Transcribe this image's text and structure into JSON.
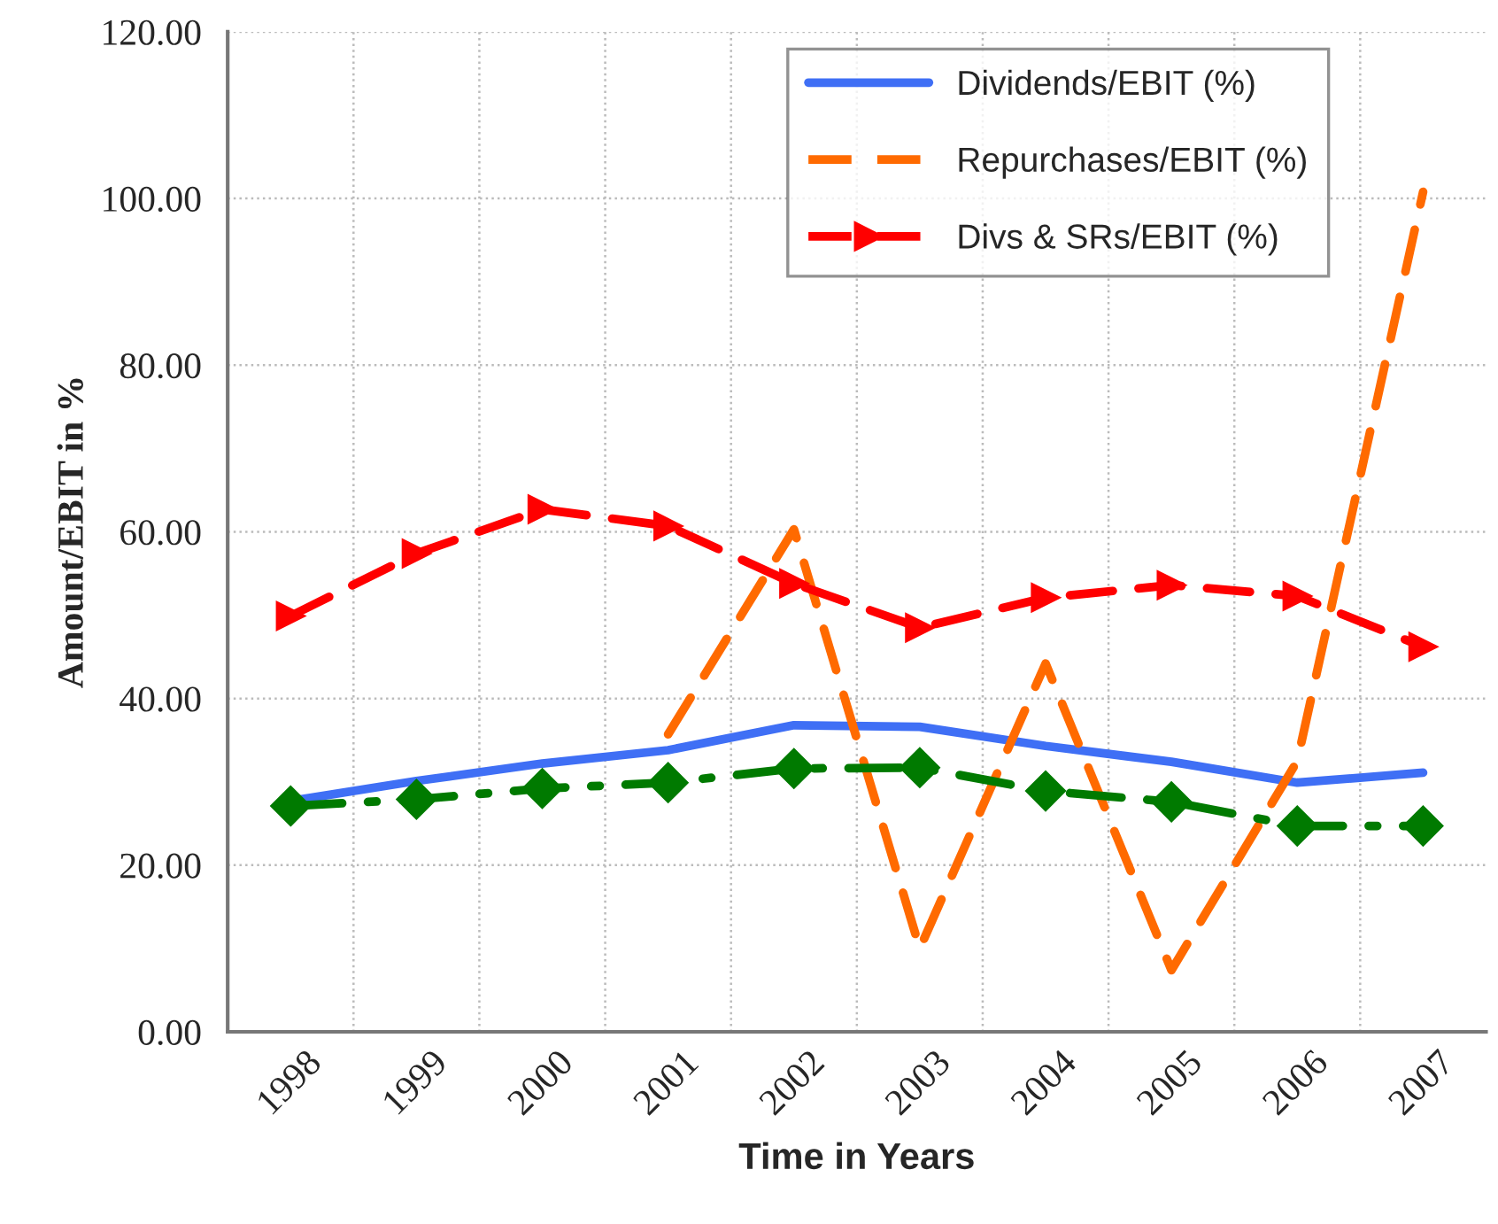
{
  "chart_data": {
    "type": "line",
    "xlabel": "Time in Years",
    "ylabel": "Amount/EBIT in %",
    "categories": [
      "1998",
      "1999",
      "2000",
      "2001",
      "2002",
      "2003",
      "2004",
      "2005",
      "2006",
      "2007"
    ],
    "series": [
      {
        "name": "Dividends/EBIT (%)",
        "color": "#3f6ff5",
        "line_style": "solid",
        "marker": "none",
        "values": [
          27.7,
          30.1,
          32.2,
          33.8,
          36.8,
          36.6,
          34.3,
          32.4,
          29.9,
          31.1
        ]
      },
      {
        "name": "Repurchases/EBIT (%)",
        "color": "#ff6a00",
        "line_style": "dashed",
        "marker": "none",
        "values": [
          null,
          null,
          null,
          35.7,
          60.3,
          10,
          44.2,
          7.4,
          32.5,
          100.8
        ]
      },
      {
        "name": "Divs & SRs/EBIT (%)",
        "color": "#ff0000",
        "line_style": "dashed",
        "marker": "triangle",
        "values": [
          49.9,
          57.4,
          62.7,
          60.7,
          53.8,
          48.5,
          52.1,
          53.6,
          52.3,
          46.2
        ]
      },
      {
        "color": "#007a00",
        "line_style": "dashdot",
        "marker": "diamond",
        "values": [
          27.1,
          27.9,
          29.2,
          29.9,
          31.6,
          31.7,
          28.9,
          27.6,
          24.7,
          24.7
        ]
      }
    ],
    "ylim": [
      0,
      120
    ],
    "yticks": [
      {
        "value": 0,
        "label": "0.00"
      },
      {
        "value": 20,
        "label": "20.00"
      },
      {
        "value": 40,
        "label": "40.00"
      },
      {
        "value": 60,
        "label": "60.00"
      },
      {
        "value": 80,
        "label": "80.00"
      },
      {
        "value": 100,
        "label": "100.00"
      },
      {
        "value": 120,
        "label": "120.00"
      }
    ],
    "grid": true,
    "legend": "top"
  }
}
